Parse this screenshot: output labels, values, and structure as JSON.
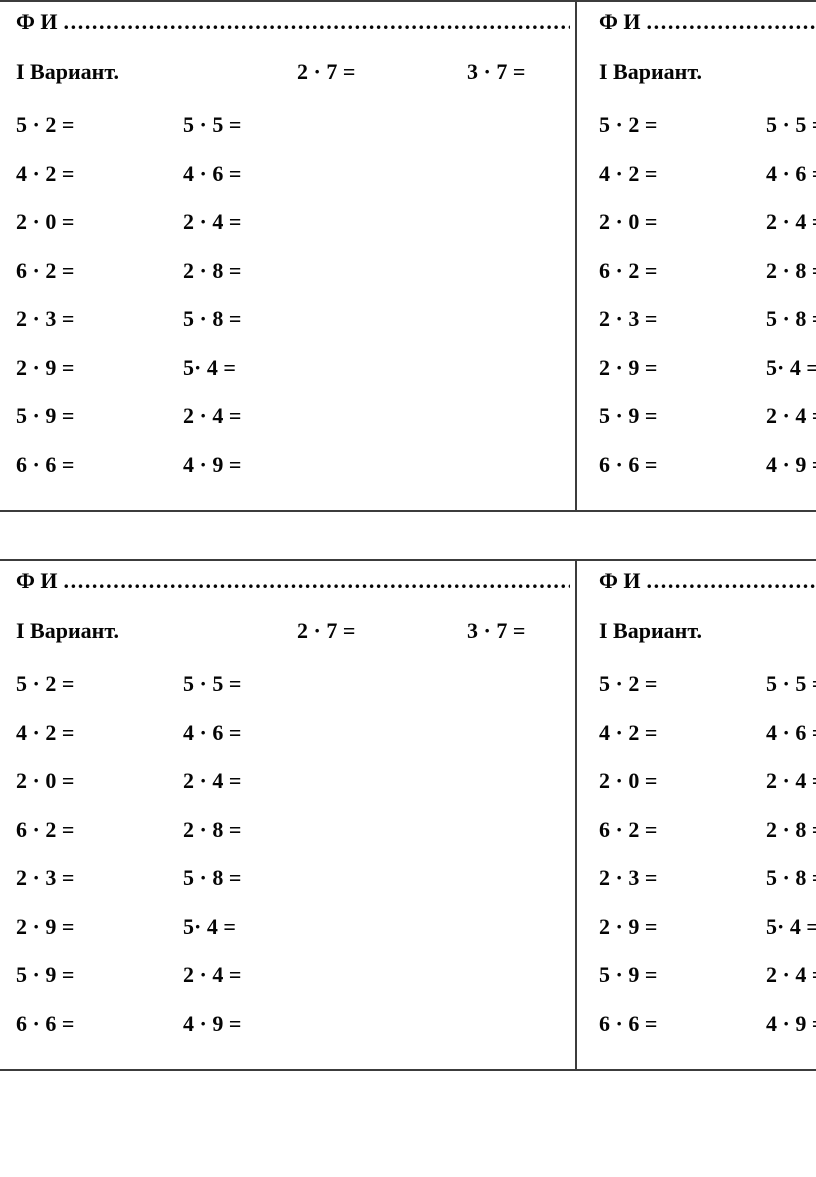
{
  "page": {
    "background": "#ffffff",
    "text_color": "#050505",
    "border_color": "#3c3c3c"
  },
  "worksheet": {
    "fi_label": "Ф И",
    "fi_dots": ".....................................................................................",
    "variant_label": "I Вариант.",
    "header_problems": [
      "2 · 7 =",
      "3 · 7 ="
    ],
    "rows": [
      {
        "left": "5 · 2 =",
        "right": "5 · 5 ="
      },
      {
        "left": "4 · 2 =",
        "right": "4 · 6 ="
      },
      {
        "left": "2 · 0 =",
        "right": "2 · 4 ="
      },
      {
        "left": "6 · 2 =",
        "right": "2 · 8 ="
      },
      {
        "left": "2 · 3 =",
        "right": "5 · 8 ="
      },
      {
        "left": "2 · 9 =",
        "right": "5· 4 ="
      },
      {
        "left": "5 · 9 =",
        "right": "2 · 4 ="
      },
      {
        "left": "6 · 6 =",
        "right": "4 · 9 ="
      }
    ],
    "quadrants": [
      "top-left",
      "top-right",
      "bottom-left",
      "bottom-right"
    ]
  }
}
